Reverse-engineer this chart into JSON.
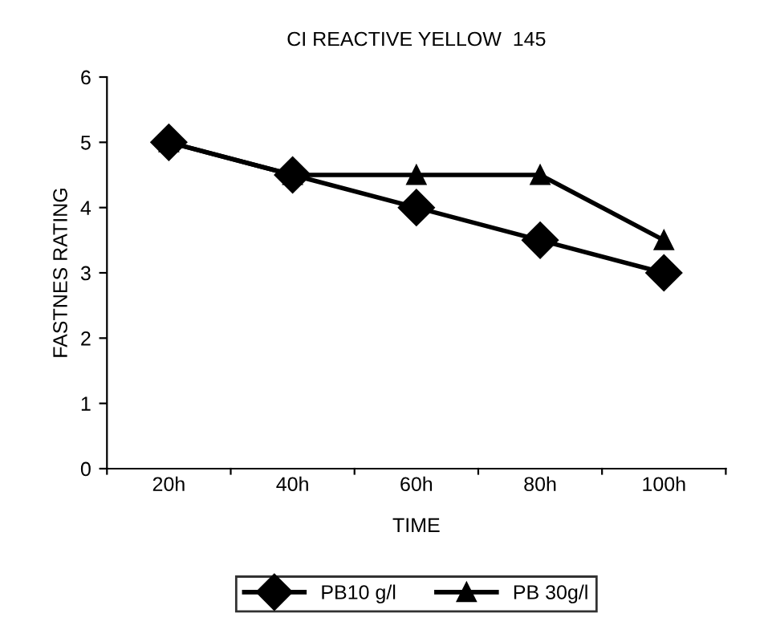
{
  "chart_data": {
    "type": "line",
    "title": "CI REACTIVE YELLOW  145",
    "xlabel": "TIME",
    "ylabel": "FASTNES RATING",
    "categories": [
      "20h",
      "40h",
      "60h",
      "80h",
      "100h"
    ],
    "series": [
      {
        "name": "PB10 g/l",
        "color": "#000000",
        "marker": "diamond",
        "values": [
          5,
          4.5,
          4,
          3.5,
          3
        ]
      },
      {
        "name": "PB 30g/l",
        "color": "#000000",
        "marker": "triangle",
        "values": [
          5,
          4.5,
          4.5,
          4.5,
          3.5
        ]
      }
    ],
    "ylim": [
      0,
      6
    ],
    "yticks": [
      0,
      1,
      2,
      3,
      4,
      5,
      6
    ],
    "grid": false,
    "legend": "bottom",
    "line_style": "solid"
  }
}
